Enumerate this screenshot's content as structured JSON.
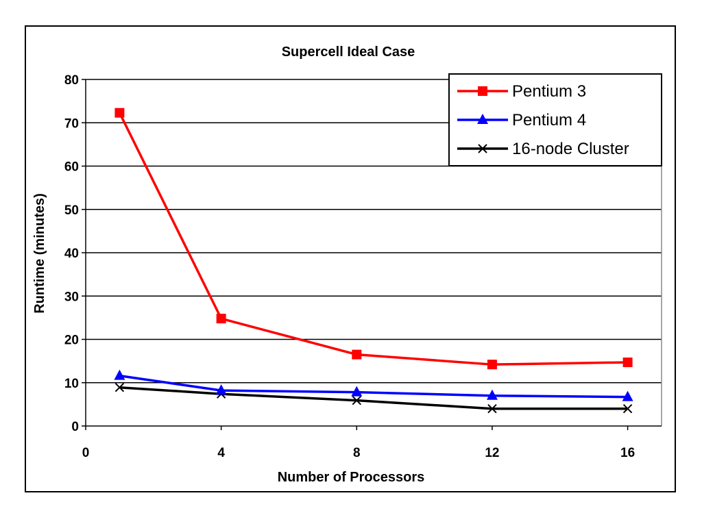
{
  "chart_data": {
    "type": "line",
    "title": "Supercell Ideal Case",
    "xlabel": "Number of Processors",
    "ylabel": "Runtime (minutes)",
    "xlim": [
      0,
      17
    ],
    "ylim": [
      0,
      80
    ],
    "xticks": [
      0,
      4,
      8,
      12,
      16
    ],
    "yticks": [
      0,
      10,
      20,
      30,
      40,
      50,
      60,
      70,
      80
    ],
    "grid": "horizontal",
    "legend_position": "top-right",
    "series": [
      {
        "name": "Pentium 3",
        "color": "#ff0000",
        "marker": "square",
        "x": [
          1,
          4,
          8,
          12,
          16
        ],
        "y": [
          72.3,
          24.8,
          16.5,
          14.2,
          14.7
        ]
      },
      {
        "name": "Pentium 4",
        "color": "#0000ff",
        "marker": "triangle",
        "x": [
          1,
          4,
          8,
          12,
          16
        ],
        "y": [
          11.6,
          8.2,
          7.8,
          7.0,
          6.7
        ]
      },
      {
        "name": "16-node Cluster",
        "color": "#000000",
        "marker": "x",
        "x": [
          1,
          4,
          8,
          12,
          16
        ],
        "y": [
          8.9,
          7.4,
          5.9,
          4.0,
          4.0
        ]
      }
    ]
  }
}
